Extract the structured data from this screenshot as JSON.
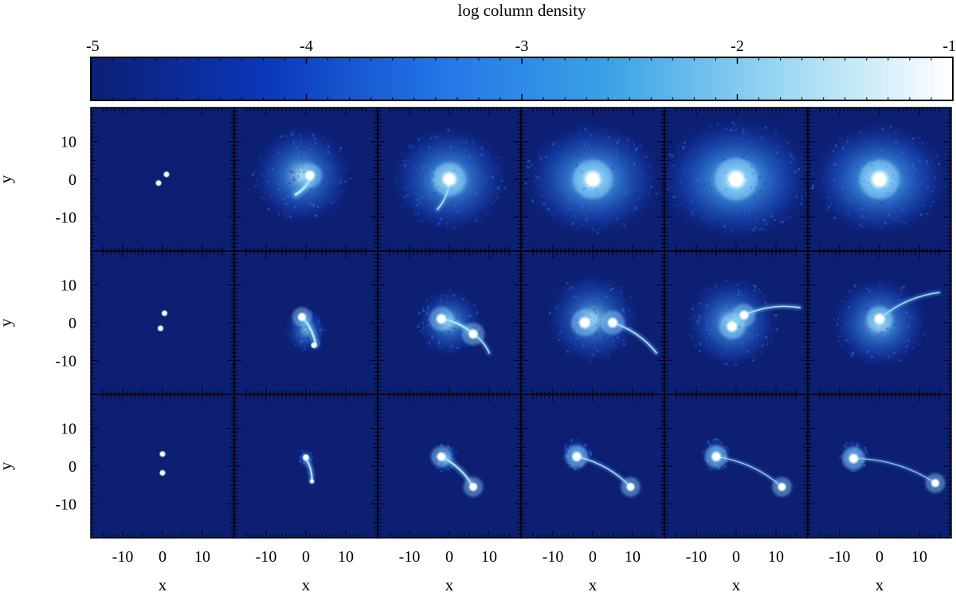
{
  "chart_data": {
    "type": "heatmap",
    "title": "log column density",
    "colorbar": {
      "ticks": [
        "-5",
        "-4",
        "-3",
        "-2",
        "-1"
      ],
      "range": [
        -5,
        -1
      ],
      "stops": [
        "#0c1f73",
        "#0b37b8",
        "#2374e6",
        "#3aa2e6",
        "#9ad8f2",
        "#ffffff"
      ]
    },
    "xlabel": "x",
    "ylabel": "y",
    "xlim": [
      -18,
      18
    ],
    "ylim": [
      -19,
      19
    ],
    "xticks": [
      "-10",
      "0",
      "10"
    ],
    "yticks": [
      "10",
      "0",
      "-10"
    ],
    "background": "#0c1f73",
    "rows": [
      [
        {
          "bodies": [
            [
              -1,
              -1,
              0.9
            ],
            [
              1,
              1.3,
              0.9
            ]
          ],
          "halo": null,
          "tails": []
        },
        {
          "bodies": [
            [
              1,
              1,
              1.6
            ]
          ],
          "halo": [
            -1,
            1,
            13,
            0.85,
            1.0
          ],
          "tails": [
            {
              "from": [
                1,
                0
              ],
              "to": [
                -2.5,
                -4
              ],
              "w": 1.2
            }
          ]
        },
        {
          "bodies": [
            [
              0,
              0,
              2.2
            ]
          ],
          "halo": [
            0,
            0,
            14,
            0.92,
            1.1
          ],
          "tails": [
            {
              "from": [
                0,
                -1
              ],
              "to": [
                -3,
                -8
              ],
              "w": 0.6
            }
          ]
        },
        {
          "bodies": [
            [
              0,
              0,
              2.6
            ]
          ],
          "halo": [
            0,
            0,
            15,
            0.98,
            1.2
          ],
          "tails": []
        },
        {
          "bodies": [
            [
              0,
              0,
              2.8
            ]
          ],
          "halo": [
            0,
            0,
            16,
            1.0,
            1.25
          ],
          "tails": []
        },
        {
          "bodies": [
            [
              0,
              0,
              2.6
            ]
          ],
          "halo": [
            0,
            0,
            15,
            1.0,
            1.2
          ],
          "tails": []
        }
      ],
      [
        {
          "bodies": [
            [
              0.5,
              2.5,
              0.9
            ],
            [
              -0.5,
              -1.5,
              0.9
            ]
          ],
          "halo": null,
          "tails": []
        },
        {
          "bodies": [
            [
              -1,
              1.5,
              1.3
            ],
            [
              2,
              -6,
              0.9
            ]
          ],
          "halo": [
            0,
            -2,
            6,
            0.7,
            0.9
          ],
          "tails": [
            {
              "from": [
                -1,
                1.5
              ],
              "to": [
                2.5,
                -6
              ],
              "w": 1.0
            }
          ]
        },
        {
          "bodies": [
            [
              -2,
              1,
              1.6
            ],
            [
              6,
              -3,
              1.5
            ]
          ],
          "halo": [
            0,
            0,
            9,
            0.75,
            0.95
          ],
          "tails": [
            {
              "from": [
                -2,
                1
              ],
              "to": [
                6,
                -3
              ],
              "w": 0.9
            },
            {
              "from": [
                6,
                -3
              ],
              "to": [
                10,
                -8
              ],
              "w": 0.6
            }
          ]
        },
        {
          "bodies": [
            [
              -2,
              0,
              1.8
            ],
            [
              5,
              0,
              1.6
            ]
          ],
          "halo": [
            0,
            1,
            12,
            0.8,
            1.0
          ],
          "tails": [
            {
              "from": [
                5,
                0
              ],
              "to": [
                16,
                -8
              ],
              "w": 0.6
            }
          ]
        },
        {
          "bodies": [
            [
              -1,
              -1,
              1.7
            ],
            [
              2,
              2,
              1.5
            ]
          ],
          "halo": [
            -1,
            0,
            12,
            0.85,
            1.0
          ],
          "tails": [
            {
              "from": [
                2,
                2
              ],
              "to": [
                16,
                4
              ],
              "w": 0.6
            }
          ]
        },
        {
          "bodies": [
            [
              0,
              1,
              1.7
            ]
          ],
          "halo": [
            0,
            0,
            12,
            0.88,
            1.05
          ],
          "tails": [
            {
              "from": [
                0,
                1
              ],
              "to": [
                15,
                8
              ],
              "w": 0.5
            }
          ]
        }
      ],
      [
        {
          "bodies": [
            [
              0,
              3.2,
              0.9
            ],
            [
              0,
              -1.8,
              0.9
            ]
          ],
          "halo": null,
          "tails": []
        },
        {
          "bodies": [
            [
              0,
              2.3,
              1.0
            ],
            [
              1.5,
              -4,
              0.7
            ]
          ],
          "halo": [
            0,
            2,
            2.5,
            0.6,
            0.8
          ],
          "tails": [
            {
              "from": [
                0,
                2
              ],
              "to": [
                1.5,
                -4
              ],
              "w": 0.8
            }
          ]
        },
        {
          "bodies": [
            [
              -2,
              2.5,
              1.4
            ],
            [
              6,
              -5.5,
              1.3
            ]
          ],
          "halo": [
            -1,
            2,
            4,
            0.65,
            0.85
          ],
          "tails": [
            {
              "from": [
                -2,
                2.5
              ],
              "to": [
                6,
                -5.5
              ],
              "w": 0.8
            }
          ]
        },
        {
          "bodies": [
            [
              -4,
              2.5,
              1.5
            ],
            [
              9.5,
              -5.5,
              1.3
            ]
          ],
          "halo": [
            -4,
            3,
            4.5,
            0.7,
            0.85
          ],
          "tails": [
            {
              "from": [
                -4,
                2.5
              ],
              "to": [
                9.5,
                -5.5
              ],
              "w": 0.5
            }
          ]
        },
        {
          "bodies": [
            [
              -5,
              2.5,
              1.5
            ],
            [
              11.5,
              -5.5,
              1.3
            ]
          ],
          "halo": [
            -5,
            3,
            4.5,
            0.7,
            0.85
          ],
          "tails": [
            {
              "from": [
                -5,
                2.5
              ],
              "to": [
                11.5,
                -5.5
              ],
              "w": 0.4
            }
          ]
        },
        {
          "bodies": [
            [
              -6.5,
              2,
              1.5
            ],
            [
              14,
              -4.5,
              1.3
            ]
          ],
          "halo": [
            -6.5,
            2.5,
            4.5,
            0.7,
            0.85
          ],
          "tails": [
            {
              "from": [
                -6.5,
                2
              ],
              "to": [
                14,
                -4.5
              ],
              "w": 0.35
            }
          ]
        }
      ]
    ]
  }
}
